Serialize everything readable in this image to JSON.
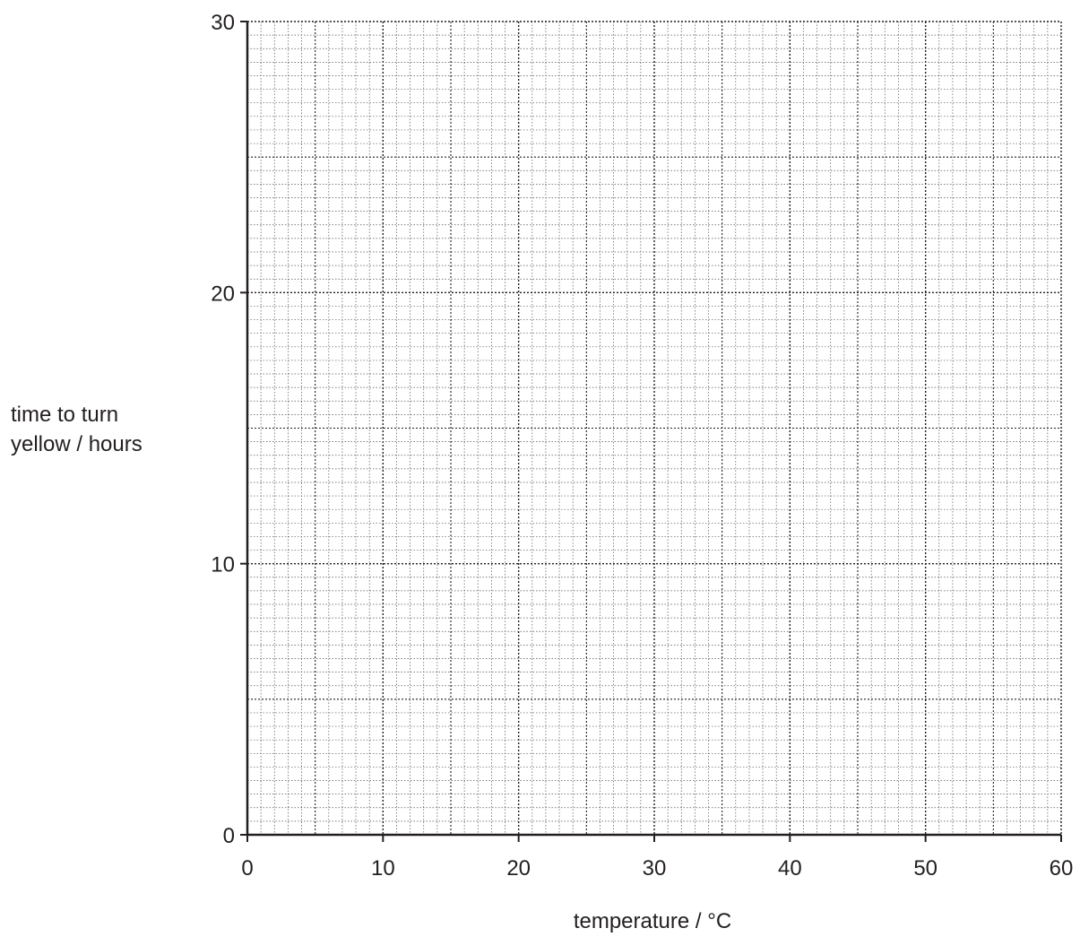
{
  "chart_data": {
    "type": "line",
    "title": "",
    "xlabel": "temperature / °C",
    "ylabel_lines": [
      "time to turn",
      "yellow / hours"
    ],
    "xlim": [
      0,
      60
    ],
    "ylim": [
      0,
      30
    ],
    "x_ticks": [
      0,
      10,
      20,
      30,
      40,
      50,
      60
    ],
    "y_ticks": [
      0,
      10,
      20,
      30
    ],
    "x_tick_labels": [
      "0",
      "10",
      "20",
      "30",
      "40",
      "50",
      "60"
    ],
    "y_tick_labels": [
      "0",
      "10",
      "20",
      "30"
    ],
    "grid": true,
    "series": []
  }
}
